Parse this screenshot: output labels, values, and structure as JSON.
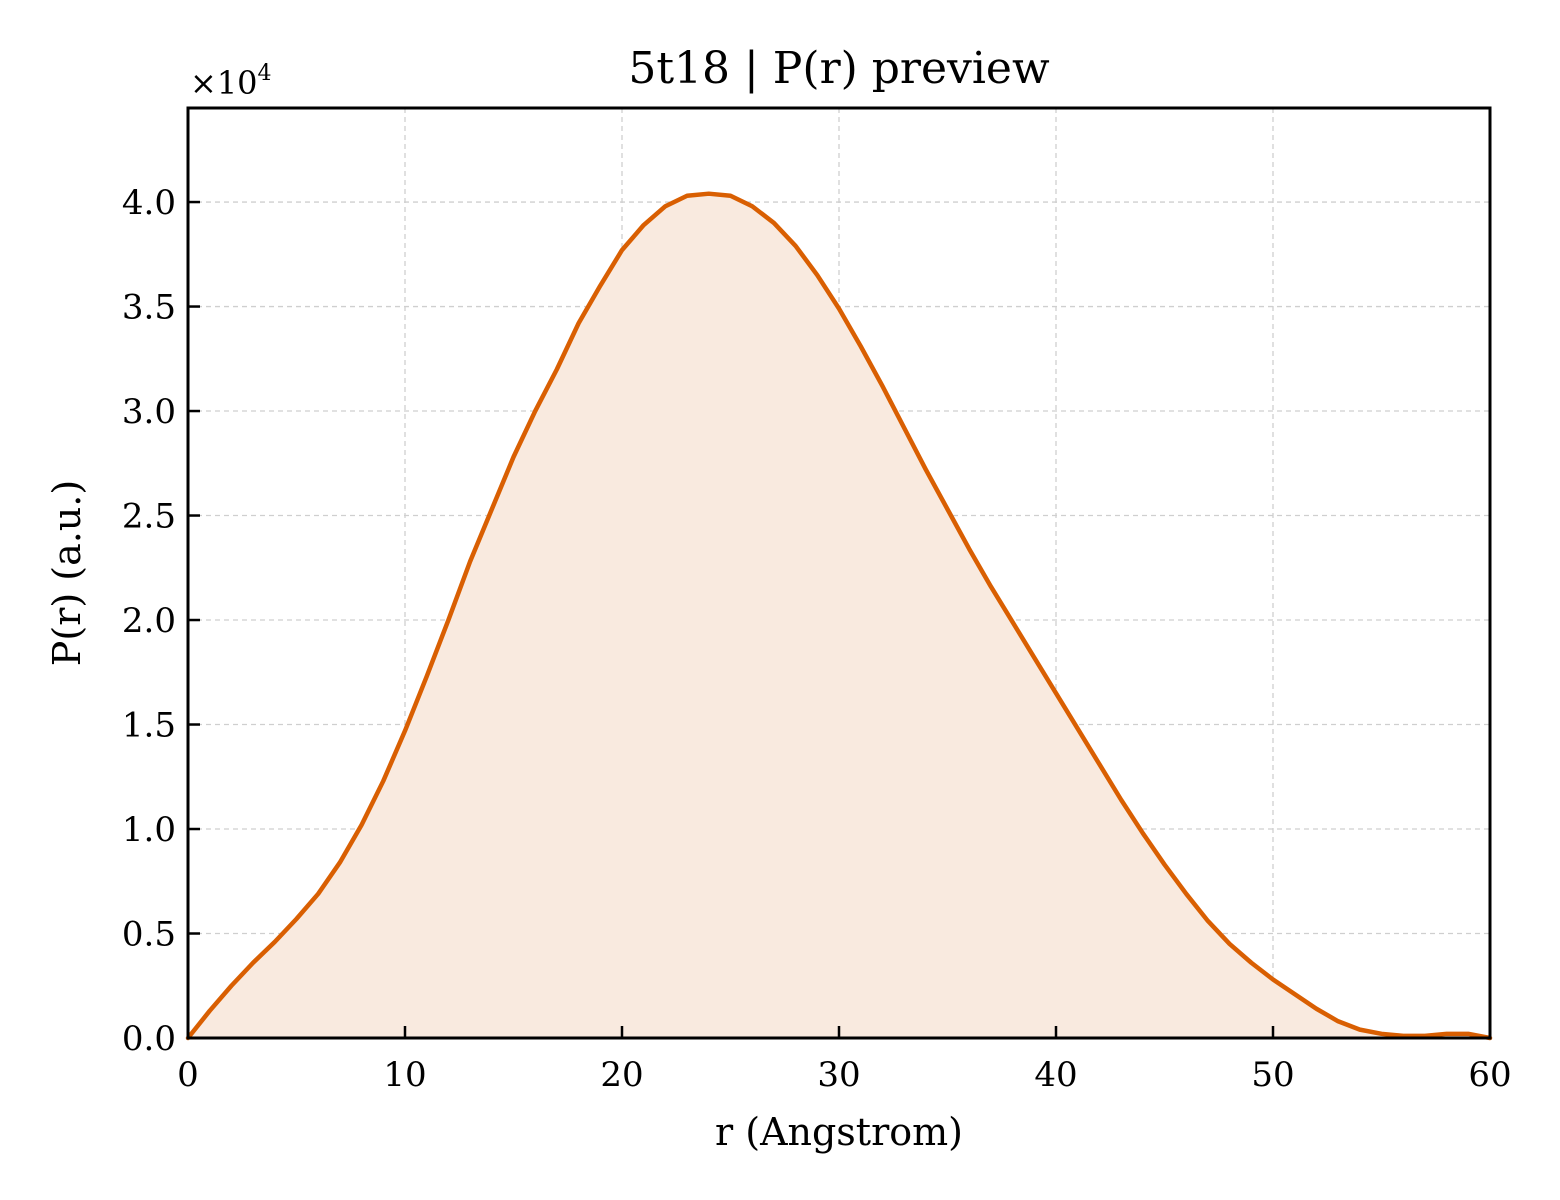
{
  "chart_data": {
    "type": "area",
    "title": "5t18 | P(r) preview",
    "xlabel": "r (Angstrom)",
    "ylabel": "P(r) (a.u.)",
    "y_multiplier": "×10",
    "y_multiplier_exp": "4",
    "xlim": [
      0,
      60
    ],
    "ylim": [
      0,
      4.45
    ],
    "xticks": [
      0,
      10,
      20,
      30,
      40,
      50,
      60
    ],
    "xtick_labels": [
      "0",
      "10",
      "20",
      "30",
      "40",
      "50",
      "60"
    ],
    "yticks": [
      0,
      0.5,
      1.0,
      1.5,
      2.0,
      2.5,
      3.0,
      3.5,
      4.0
    ],
    "ytick_labels": [
      "0.0",
      "0.5",
      "1.0",
      "1.5",
      "2.0",
      "2.5",
      "3.0",
      "3.5",
      "4.0"
    ],
    "grid": true,
    "line_color": "#d95f02",
    "fill_color": "#f9eadf",
    "series": [
      {
        "x": [
          0,
          1,
          2,
          3,
          4,
          5,
          6,
          7,
          8,
          9,
          10,
          11,
          12,
          13,
          14,
          15,
          16,
          17,
          18,
          19,
          20,
          21,
          22,
          23,
          24,
          25,
          26,
          27,
          28,
          29,
          30,
          31,
          32,
          33,
          34,
          35,
          36,
          37,
          38,
          39,
          40,
          41,
          42,
          43,
          44,
          45,
          46,
          47,
          48,
          49,
          50,
          51,
          52,
          53,
          54,
          55,
          56,
          57,
          58,
          59,
          60
        ],
        "y": [
          0.0,
          0.13,
          0.25,
          0.36,
          0.46,
          0.57,
          0.69,
          0.84,
          1.02,
          1.23,
          1.47,
          1.73,
          2.0,
          2.28,
          2.53,
          2.78,
          3.0,
          3.2,
          3.42,
          3.6,
          3.77,
          3.89,
          3.98,
          4.03,
          4.04,
          4.03,
          3.98,
          3.9,
          3.79,
          3.65,
          3.49,
          3.31,
          3.12,
          2.92,
          2.72,
          2.53,
          2.34,
          2.16,
          1.99,
          1.82,
          1.65,
          1.48,
          1.31,
          1.14,
          0.98,
          0.83,
          0.69,
          0.56,
          0.45,
          0.36,
          0.28,
          0.21,
          0.14,
          0.08,
          0.04,
          0.02,
          0.01,
          0.01,
          0.02,
          0.02,
          0.0
        ]
      }
    ]
  }
}
